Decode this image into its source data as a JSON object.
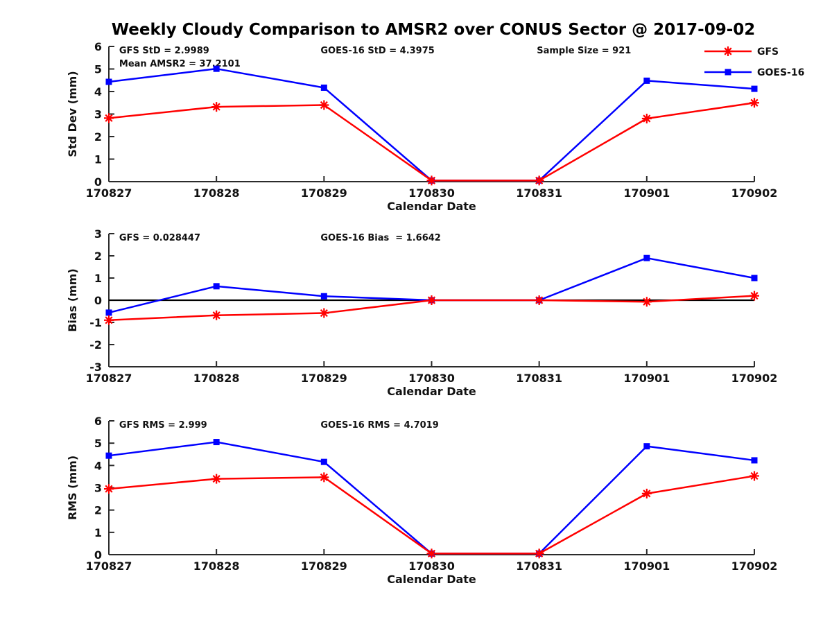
{
  "title": "Weekly Cloudy Comparison to AMSR2 over CONUS Sector @ 2017-09-02",
  "colors": {
    "gfs": "#ff0000",
    "goes16": "#0000ff",
    "axis": "#2b2b2b",
    "zero_line": "#000000"
  },
  "legend": [
    {
      "label": "GFS",
      "color": "#ff0000",
      "marker": "asterisk"
    },
    {
      "label": "GOES-16",
      "color": "#0000ff",
      "marker": "square"
    }
  ],
  "chart_data": [
    {
      "id": "stddev",
      "type": "line",
      "ylabel": "Std Dev (mm)",
      "xlabel": "Calendar Date",
      "ylim": [
        0,
        6
      ],
      "yticks": [
        0,
        1,
        2,
        3,
        4,
        5,
        6
      ],
      "grid": false,
      "legend_position": "top-right-outside",
      "categories": [
        "170827",
        "170828",
        "170829",
        "170830",
        "170831",
        "170901",
        "170902"
      ],
      "series": [
        {
          "name": "GFS",
          "color": "#ff0000",
          "marker": "asterisk",
          "values": [
            2.82,
            3.32,
            3.4,
            0.05,
            0.05,
            2.8,
            3.5
          ]
        },
        {
          "name": "GOES-16",
          "color": "#0000ff",
          "marker": "square",
          "values": [
            4.43,
            5.01,
            4.17,
            0.05,
            0.05,
            4.48,
            4.12
          ]
        }
      ],
      "annotations": [
        {
          "text": "GFS StD = 2.9989",
          "fx": 0.016,
          "dy": 10
        },
        {
          "text": "Mean AMSR2 = 37.2101",
          "fx": 0.016,
          "dy": 29
        },
        {
          "text": "GOES-16 StD = 4.3975",
          "fx": 0.328,
          "dy": 10
        },
        {
          "text": "Sample Size = 921",
          "fx": 0.663,
          "dy": 10
        }
      ],
      "zero_line": false
    },
    {
      "id": "bias",
      "type": "line",
      "ylabel": "Bias (mm)",
      "xlabel": "Calendar Date",
      "ylim": [
        -3,
        3
      ],
      "yticks": [
        -3,
        -2,
        -1,
        0,
        1,
        2,
        3
      ],
      "grid": false,
      "categories": [
        "170827",
        "170828",
        "170829",
        "170830",
        "170831",
        "170901",
        "170902"
      ],
      "series": [
        {
          "name": "GFS",
          "color": "#ff0000",
          "marker": "asterisk",
          "values": [
            -0.9,
            -0.68,
            -0.58,
            0.0,
            0.0,
            -0.07,
            0.2
          ]
        },
        {
          "name": "GOES-16",
          "color": "#0000ff",
          "marker": "square",
          "values": [
            -0.56,
            0.63,
            0.18,
            0.0,
            0.0,
            1.9,
            1.0
          ]
        }
      ],
      "annotations": [
        {
          "text": "GFS = 0.028447",
          "fx": 0.016,
          "dy": 10
        },
        {
          "text": "GOES-16 Bias  = 1.6642",
          "fx": 0.328,
          "dy": 10
        }
      ],
      "zero_line": true
    },
    {
      "id": "rms",
      "type": "line",
      "ylabel": "RMS (mm)",
      "xlabel": "Calendar Date",
      "ylim": [
        0,
        6
      ],
      "yticks": [
        0,
        1,
        2,
        3,
        4,
        5,
        6
      ],
      "grid": false,
      "categories": [
        "170827",
        "170828",
        "170829",
        "170830",
        "170831",
        "170901",
        "170902"
      ],
      "series": [
        {
          "name": "GFS",
          "color": "#ff0000",
          "marker": "asterisk",
          "values": [
            2.95,
            3.4,
            3.47,
            0.05,
            0.05,
            2.74,
            3.53
          ]
        },
        {
          "name": "GOES-16",
          "color": "#0000ff",
          "marker": "square",
          "values": [
            4.44,
            5.05,
            4.16,
            0.05,
            0.05,
            4.86,
            4.23
          ]
        }
      ],
      "annotations": [
        {
          "text": "GFS RMS = 2.999",
          "fx": 0.016,
          "dy": 10
        },
        {
          "text": "GOES-16 RMS = 4.7019",
          "fx": 0.328,
          "dy": 10
        }
      ],
      "zero_line": false
    }
  ]
}
